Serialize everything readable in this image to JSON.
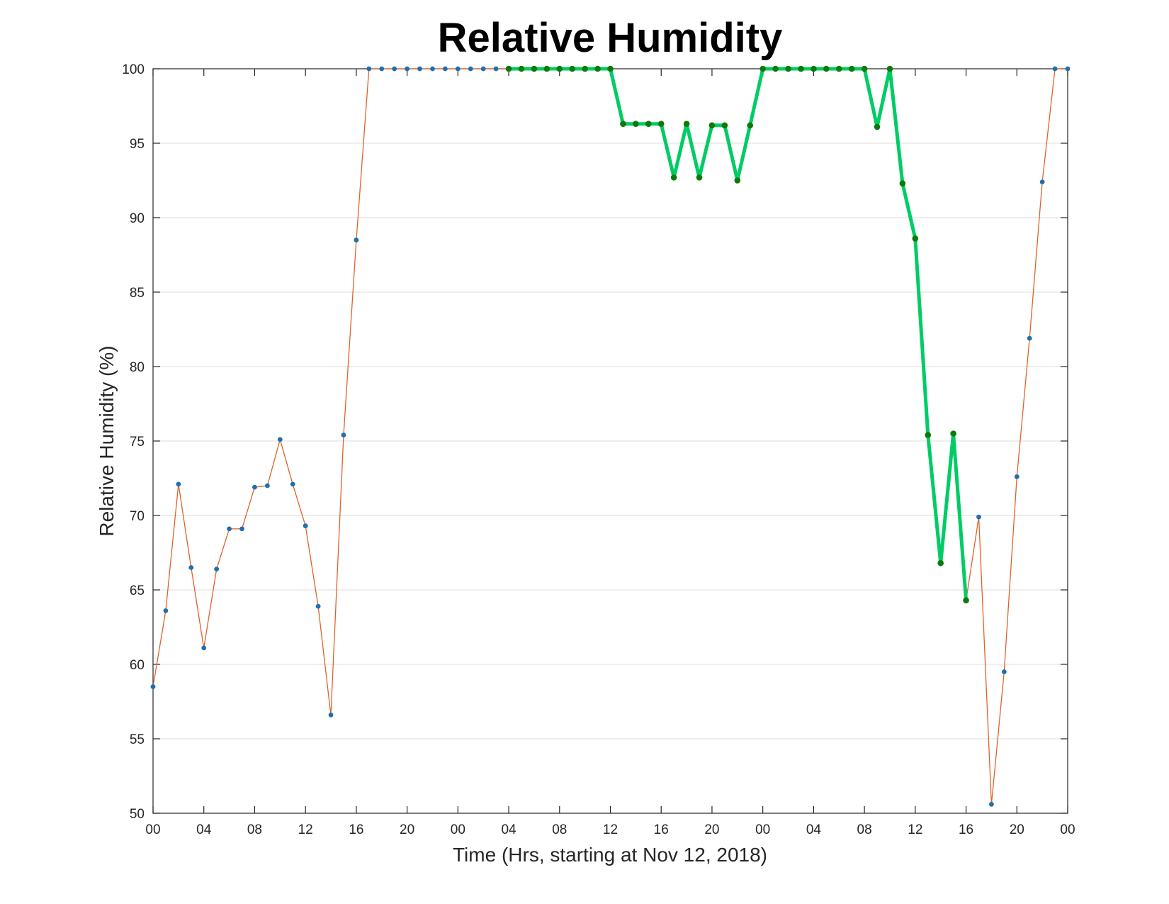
{
  "chart_data": {
    "type": "line",
    "title": "Relative Humidity",
    "xlabel": "Time (Hrs, starting at Nov 12, 2018)",
    "ylabel": "Relative Humidity (%)",
    "ylim": [
      50,
      100
    ],
    "xlim": [
      0,
      72
    ],
    "x_unit": "hours",
    "x_ticks": [
      0,
      4,
      8,
      12,
      16,
      20,
      24,
      28,
      32,
      36,
      40,
      44,
      48,
      52,
      56,
      60,
      64,
      68,
      72
    ],
    "x_tick_labels": [
      "00",
      "04",
      "08",
      "12",
      "16",
      "20",
      "00",
      "04",
      "08",
      "12",
      "16",
      "20",
      "00",
      "04",
      "08",
      "12",
      "16",
      "20",
      "00"
    ],
    "y_ticks": [
      50,
      55,
      60,
      65,
      70,
      75,
      80,
      85,
      90,
      95,
      100
    ],
    "y_tick_labels": [
      "50",
      "55",
      "60",
      "65",
      "70",
      "75",
      "80",
      "85",
      "90",
      "95",
      "100"
    ],
    "grid": "horizontal",
    "colors": {
      "all_data_line": "#e0622a",
      "all_data_marker": "#1f6fb0",
      "highlight_line": "#00cc66",
      "highlight_marker": "#0a7a0a"
    },
    "series": [
      {
        "x": [
          0,
          1,
          2,
          3,
          4,
          5,
          6,
          7,
          8,
          9,
          10,
          11,
          12,
          13,
          14,
          15,
          16,
          17,
          18,
          19,
          20,
          21,
          22,
          23,
          24,
          25,
          26,
          27,
          28,
          29,
          30,
          31,
          32,
          33,
          34,
          35,
          36,
          37,
          38,
          39,
          40,
          41,
          42,
          43,
          44,
          45,
          46,
          47,
          48,
          49,
          50,
          51,
          52,
          53,
          54,
          55,
          56,
          57,
          58,
          59,
          60,
          61,
          62,
          63,
          64,
          65,
          66,
          67,
          68,
          69,
          70,
          71,
          72
        ],
        "values": [
          58.5,
          63.6,
          72.1,
          66.5,
          61.1,
          66.4,
          69.1,
          69.1,
          71.9,
          72.0,
          75.1,
          72.1,
          69.3,
          63.9,
          56.6,
          75.4,
          88.5,
          100,
          100,
          100,
          100,
          100,
          100,
          100,
          100,
          100,
          100,
          100,
          100,
          100,
          100,
          100,
          100,
          100,
          100,
          100,
          100,
          96.3,
          96.3,
          96.3,
          96.3,
          92.7,
          96.3,
          92.7,
          96.2,
          96.2,
          92.5,
          96.2,
          100,
          100,
          100,
          100,
          100,
          100,
          100,
          100,
          100,
          96.1,
          100,
          92.3,
          88.6,
          75.4,
          66.8,
          75.5,
          64.3,
          69.9,
          50.6,
          59.5,
          72.6,
          81.9,
          92.4,
          100,
          100
        ]
      },
      {
        "x": [
          28,
          29,
          30,
          31,
          32,
          33,
          34,
          35,
          36,
          37,
          38,
          39,
          40,
          41,
          42,
          43,
          44,
          45,
          46,
          47,
          48,
          49,
          50,
          51,
          52,
          53,
          54,
          55,
          56,
          57,
          58,
          59,
          60,
          61,
          62,
          63,
          64
        ],
        "values": [
          100,
          100,
          100,
          100,
          100,
          100,
          100,
          100,
          100,
          96.3,
          96.3,
          96.3,
          96.3,
          92.7,
          96.3,
          92.7,
          96.2,
          96.2,
          92.5,
          96.2,
          100,
          100,
          100,
          100,
          100,
          100,
          100,
          100,
          100,
          96.1,
          100,
          92.3,
          88.6,
          75.4,
          66.8,
          75.5,
          64.3
        ]
      }
    ]
  }
}
